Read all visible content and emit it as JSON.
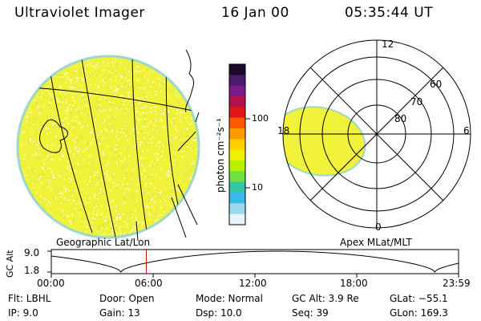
{
  "header": {
    "title": "Ultraviolet Imager",
    "date": "16 Jan 00",
    "time": "05:35:44 UT"
  },
  "colorbar": {
    "unit_label": "photon cm⁻²s⁻¹",
    "ticks": [
      "100",
      "10"
    ],
    "colors": [
      "#1a0a2e",
      "#4b1a6b",
      "#7a1a8c",
      "#b0124a",
      "#e01818",
      "#ff5a00",
      "#ff9a00",
      "#ffd000",
      "#f0f000",
      "#b8f000",
      "#70e040",
      "#30c8a0",
      "#3ab8e8",
      "#9ad8f0",
      "#e8f4f8"
    ]
  },
  "left_map": {
    "caption": "Geographic Lat/Lon",
    "fill_color": "#f2f23a"
  },
  "polar_plot": {
    "caption": "Apex MLat/MLT",
    "mlt_labels": {
      "top": "12",
      "bottom": "0",
      "left": "18",
      "right": "6"
    },
    "lat_labels": [
      "60",
      "70",
      "80"
    ],
    "fill_color": "#f2f23a"
  },
  "alt_plot": {
    "ylabel": "GC Alt",
    "ymax": "9.0",
    "ymin": "1.8",
    "xticks": [
      "00:00",
      "06:00",
      "12:00",
      "18:00",
      "23:59"
    ],
    "marker_time_hours": 5.6,
    "marker_color": "#d01010"
  },
  "status": {
    "flt": "Flt: LBHL",
    "ip": "IP:  9.0",
    "door": "Door: Open",
    "gain": "Gain: 13",
    "mode": "Mode: Normal",
    "dsp": "Dsp:    10.0",
    "gcalt": "GC Alt: 3.9 Re",
    "seq": "Seq: 39",
    "glat": "GLat: −55.1",
    "glon": "GLon: 169.3"
  }
}
